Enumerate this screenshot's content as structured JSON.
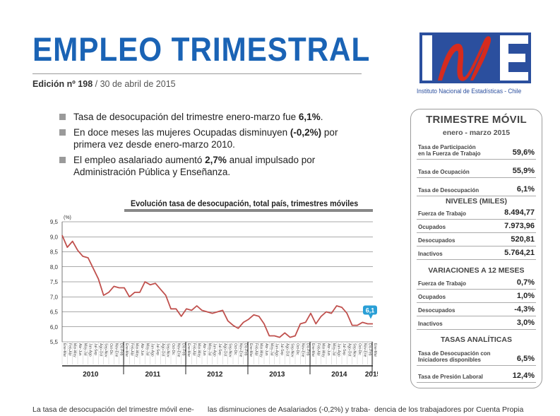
{
  "header": {
    "title": "EMPLEO TRIMESTRAL",
    "edition_label": "Edición nº 198",
    "edition_date": "/ 30 de abril de 2015",
    "logo_caption": "Instituto Nacional de Estadísticas - Chile"
  },
  "bullets": [
    {
      "pre": "Tasa de desocupación del trimestre enero-marzo fue ",
      "bold": "6,1%",
      "post": "."
    },
    {
      "pre": "En doce meses las mujeres Ocupadas disminuyen ",
      "bold": "(-0,2%)",
      "post": " por primera vez desde enero-marzo 2010."
    },
    {
      "pre": "El empleo asalariado aumentó ",
      "bold": "2,7%",
      "post": " anual impulsado por Administración Pública y Enseñanza."
    }
  ],
  "chart_data": {
    "type": "line",
    "title": "Evolución tasa de desocupación, total país, trimestres móviles",
    "ylabel": "(%)",
    "ylim": [
      5.5,
      9.5
    ],
    "yticks": [
      "9,5",
      "9,0",
      "8,5",
      "8,0",
      "7,5",
      "7,0",
      "6,5",
      "6,0",
      "5,5"
    ],
    "grid": true,
    "month_labels": [
      "Ene-Mar",
      "Feb-Abr",
      "Mar-May",
      "Abr-Jun",
      "May-Jul",
      "Jun-Ago",
      "Jul-Sep",
      "Ago-Oct",
      "Sep-Nov",
      "Oct-Dic",
      "Nov-Ene",
      "Dic-Feb"
    ],
    "years": [
      "2010",
      "2011",
      "2012",
      "2013",
      "2014",
      "2015"
    ],
    "last_label": "6,1",
    "series": [
      {
        "values": [
          9.05,
          8.65,
          8.85,
          8.55,
          8.35,
          8.3,
          7.95,
          7.6,
          7.05,
          7.15,
          7.35,
          7.3,
          7.3,
          7.0,
          7.15,
          7.15,
          7.5,
          7.4,
          7.45,
          7.25,
          7.05,
          6.6,
          6.6,
          6.35,
          6.6,
          6.55,
          6.7,
          6.55,
          6.5,
          6.45,
          6.5,
          6.55,
          6.2,
          6.05,
          5.95,
          6.15,
          6.25,
          6.4,
          6.35,
          6.1,
          5.7,
          5.7,
          5.65,
          5.8,
          5.65,
          5.7,
          6.1,
          6.15,
          6.45,
          6.1,
          6.35,
          6.5,
          6.45,
          6.7,
          6.65,
          6.45,
          6.05,
          6.05,
          6.15,
          6.1,
          6.1
        ],
        "color": "#c0504d"
      }
    ]
  },
  "panel": {
    "title": "TRIMESTRE MÓVIL",
    "subtitle": "enero - marzo 2015",
    "rates": [
      {
        "label": "Tasa de Participación\nen la Fuerza de Trabajo",
        "value": "59,6%"
      },
      {
        "label": "Tasa de Ocupación",
        "value": "55,9%"
      },
      {
        "label": "Tasa de Desocupación",
        "value": "6,1%"
      }
    ],
    "levels_title": "NIVELES (MILES)",
    "levels": [
      {
        "label": "Fuerza de Trabajo",
        "value": "8.494,77"
      },
      {
        "label": "Ocupados",
        "value": "7.973,96"
      },
      {
        "label": "Desocupados",
        "value": "520,81"
      },
      {
        "label": "Inactivos",
        "value": "5.764,21"
      }
    ],
    "variations_title": "VARIACIONES A 12 MESES",
    "variations": [
      {
        "label": "Fuerza de Trabajo",
        "value": "0,7%"
      },
      {
        "label": "Ocupados",
        "value": "1,0%"
      },
      {
        "label": "Desocupados",
        "value": "-4,3%"
      },
      {
        "label": "Inactivos",
        "value": "3,0%"
      }
    ],
    "analytic_title": "TASAS ANALÍTICAS",
    "analytic": [
      {
        "label": "Tasa de Desocupación con\nIniciadores disponibles",
        "value": "6,5%"
      },
      {
        "label": "Tasa de Presión Laboral",
        "value": "12,4%"
      }
    ]
  },
  "footer": {
    "col1": "La tasa de desocupación del trimestre móvil ene-",
    "col2": "las disminuciones de Asalariados (-0,2%) y traba-",
    "col3": "dencia de los trabajadores por Cuenta Propia"
  },
  "colors": {
    "title_blue": "#1a63b5",
    "line_red": "#c0504d",
    "badge_blue": "#2a9fd6",
    "logo_blue": "#2b4f9e",
    "logo_red": "#d52b1e"
  }
}
